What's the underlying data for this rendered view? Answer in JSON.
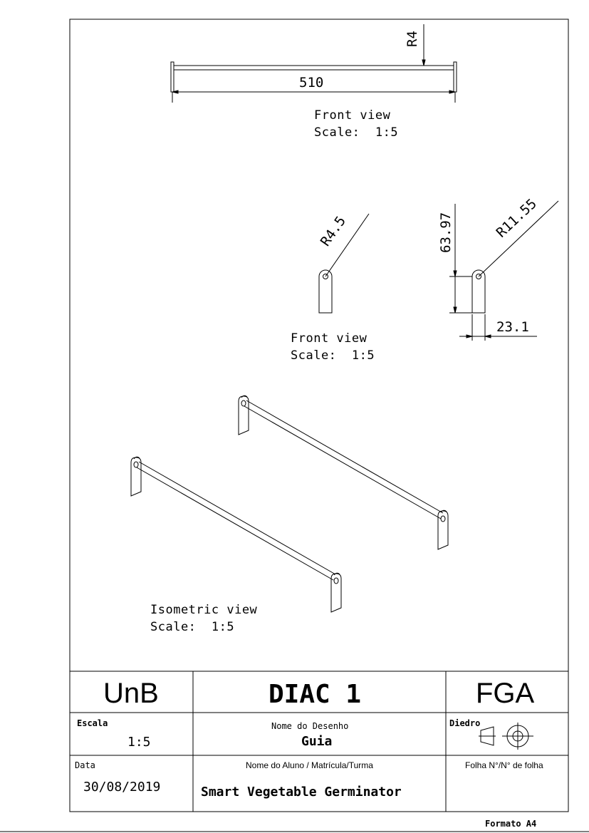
{
  "views": {
    "front_top": {
      "title": "Front view",
      "scale": "Scale:  1:5",
      "dim_length": "510",
      "dim_radius": "R4"
    },
    "front_mid": {
      "title": "Front view",
      "scale": "Scale:  1:5",
      "dim_radius_small": "R4.5",
      "dim_height": "63.97",
      "dim_radius_large": "R11.55",
      "dim_width": "23.1"
    },
    "isometric": {
      "title": "Isometric view",
      "scale": "Scale:  1:5"
    }
  },
  "title_block": {
    "institution": "UnB",
    "drawing_code": "DIAC 1",
    "campus": "FGA",
    "scale_label": "Escala",
    "scale_value": "1:5",
    "drawing_name_label": "Nome do Desenho",
    "drawing_name": "Guia",
    "projection_label": "Diedro",
    "date_label": "Data",
    "date_value": "30/08/2019",
    "student_label": "Nome do Aluno / Matrícula/Turma",
    "student_value": "Smart Vegetable Germinator",
    "sheet_label": "Folha N°/N° de folha",
    "sheet_value": ""
  },
  "format_label": "Formato A4"
}
